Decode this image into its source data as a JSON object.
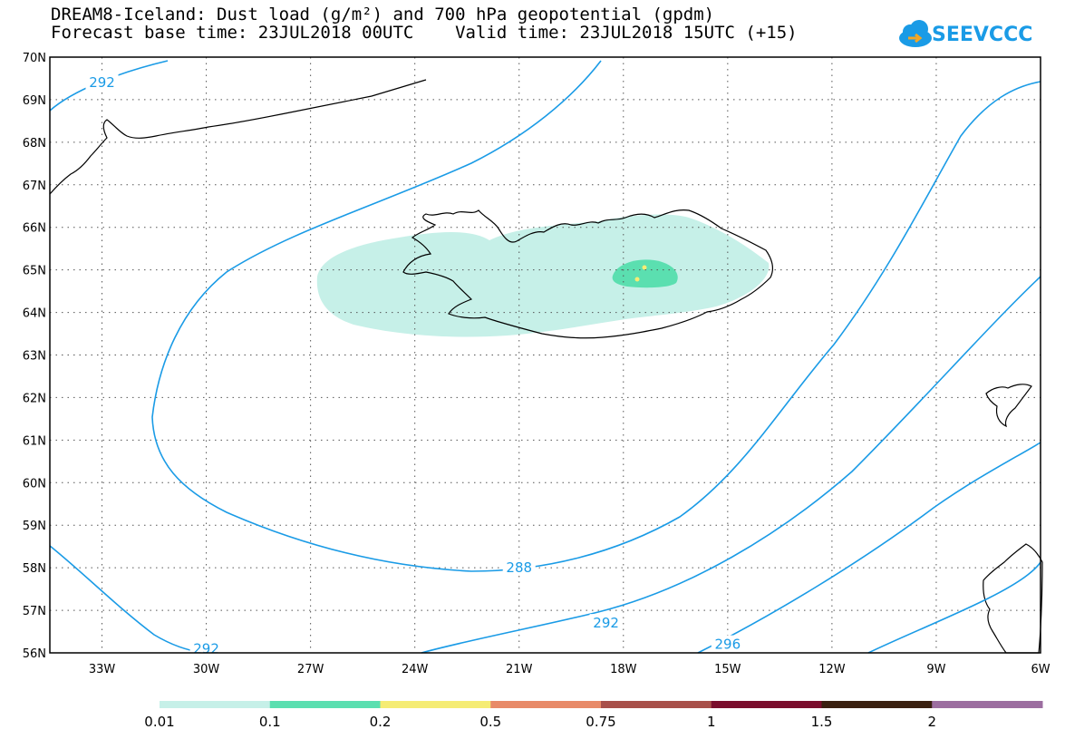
{
  "title": {
    "line1": "DREAM8-Iceland: Dust load (g/m²) and 700 hPa geopotential (gpdm)",
    "line2": "Forecast base time: 23JUL2018 00UTC    Valid time: 23JUL2018 15UTC (+15)"
  },
  "logo": {
    "text": "SEEVCCC",
    "icon": "cloud-icon"
  },
  "map": {
    "lon_range": [
      -34.5,
      -6
    ],
    "lat_range": [
      56,
      70
    ],
    "lon_ticks": [
      "33W",
      "30W",
      "27W",
      "24W",
      "21W",
      "18W",
      "15W",
      "12W",
      "9W",
      "6W"
    ],
    "lat_ticks": [
      "70N",
      "69N",
      "68N",
      "67N",
      "66N",
      "65N",
      "64N",
      "63N",
      "62N",
      "61N",
      "60N",
      "59N",
      "58N",
      "57N",
      "56N"
    ],
    "grid": "dotted",
    "coastline_color": "#000000",
    "contour_color": "#1a9be6"
  },
  "contours": [
    {
      "value": "292",
      "label_pos": "69.4N 33W"
    },
    {
      "value": "288",
      "label_pos": "58.0N 21W"
    },
    {
      "value": "292",
      "label_pos": "56.7N 18.5W"
    },
    {
      "value": "292",
      "label_pos": "56.1N 30W"
    },
    {
      "value": "296",
      "label_pos": "56.2N 15W"
    }
  ],
  "legend": {
    "labels": [
      "0.01",
      "0.1",
      "0.2",
      "0.5",
      "0.75",
      "1",
      "1.5",
      "2"
    ],
    "colors": [
      "#c6f0e8",
      "#5bdfb0",
      "#f5ec74",
      "#e88a68",
      "#a8504a",
      "#7a0d2c",
      "#3a2010",
      "#9c6ea0"
    ]
  }
}
